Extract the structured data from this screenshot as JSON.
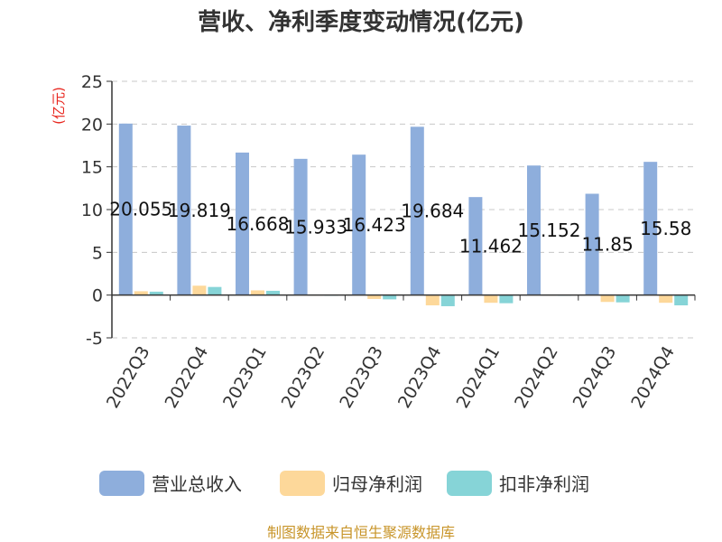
{
  "chart_data": {
    "type": "bar",
    "title": "营收、净利季度变动情况(亿元)",
    "ylabel": "(亿元)",
    "ylim": [
      -5,
      25
    ],
    "yticks": [
      -5,
      0,
      5,
      10,
      15,
      20,
      25
    ],
    "grid": "horizontal-dashed",
    "legend_position": "bottom",
    "categories": [
      "2022Q3",
      "2022Q4",
      "2023Q1",
      "2023Q2",
      "2023Q3",
      "2023Q4",
      "2024Q1",
      "2024Q2",
      "2024Q3",
      "2024Q4"
    ],
    "series": [
      {
        "name": "营业总收入",
        "color": "#8eaedc",
        "values": [
          20.055,
          19.819,
          16.668,
          15.933,
          16.423,
          19.684,
          11.462,
          15.152,
          11.85,
          15.58
        ],
        "data_labels": [
          "20.055",
          "19.819",
          "16.668",
          "15.933",
          "16.423",
          "19.684",
          "11.462",
          "15.152",
          "11.85",
          "15.58"
        ]
      },
      {
        "name": "归母净利润",
        "color": "#fdd89a",
        "values": [
          0.45,
          1.1,
          0.55,
          0.05,
          -0.45,
          -1.2,
          -0.9,
          0.05,
          -0.8,
          -0.9
        ]
      },
      {
        "name": "扣非净利润",
        "color": "#86d4d7",
        "values": [
          0.4,
          0.95,
          0.5,
          0.03,
          -0.5,
          -1.3,
          -0.95,
          0.03,
          -0.85,
          -1.2
        ]
      }
    ]
  },
  "source_text": "制图数据来自恒生聚源数据库"
}
